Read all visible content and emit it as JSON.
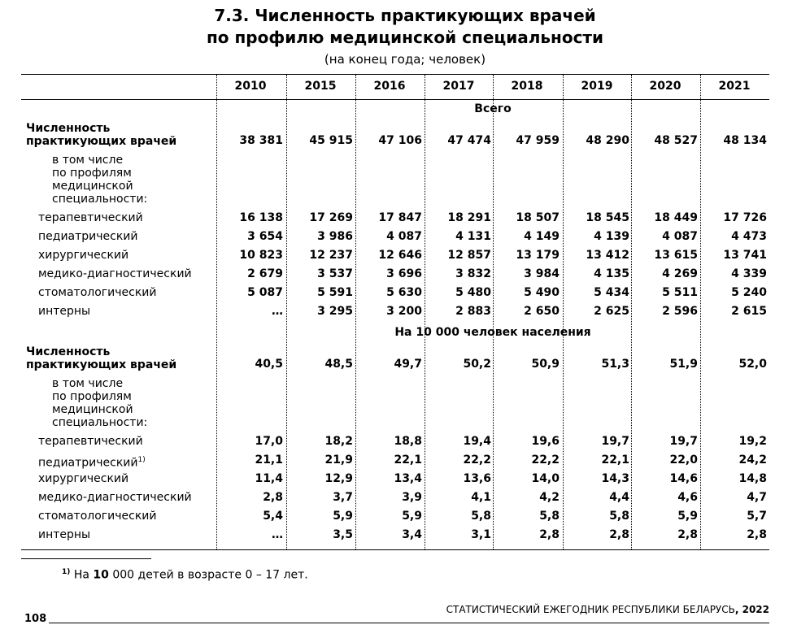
{
  "title_line1": "7.3. Численность практикующих врачей",
  "title_line2": "по профилю медицинской специальности",
  "subtitle": "(на конец года; человек)",
  "years": [
    "2010",
    "2015",
    "2016",
    "2017",
    "2018",
    "2019",
    "2020",
    "2021"
  ],
  "sections": [
    {
      "title": "Всего",
      "total_label_1": "Численность",
      "total_label_2": "практикующих врачей",
      "total_values": [
        "38 381",
        "45 915",
        "47 106",
        "47 474",
        "47 959",
        "48 290",
        "48 527",
        "48 134"
      ],
      "sub_label_lines": [
        "в том числе",
        "по профилям",
        "медицинской",
        "специальности:"
      ],
      "rows": [
        {
          "label": "терапевтический",
          "values": [
            "16 138",
            "17 269",
            "17 847",
            "18 291",
            "18 507",
            "18 545",
            "18 449",
            "17 726"
          ]
        },
        {
          "label": "педиатрический",
          "values": [
            "3 654",
            "3 986",
            "4 087",
            "4 131",
            "4 149",
            "4 139",
            "4 087",
            "4 473"
          ]
        },
        {
          "label": "хирургический",
          "values": [
            "10 823",
            "12 237",
            "12 646",
            "12 857",
            "13 179",
            "13 412",
            "13 615",
            "13 741"
          ]
        },
        {
          "label": "медико-диагностический",
          "values": [
            "2 679",
            "3 537",
            "3 696",
            "3 832",
            "3 984",
            "4 135",
            "4 269",
            "4 339"
          ]
        },
        {
          "label": "стоматологический",
          "values": [
            "5 087",
            "5 591",
            "5 630",
            "5 480",
            "5 490",
            "5 434",
            "5 511",
            "5 240"
          ]
        },
        {
          "label": "интерны",
          "values": [
            "…",
            "3 295",
            "3 200",
            "2 883",
            "2 650",
            "2 625",
            "2 596",
            "2 615"
          ]
        }
      ]
    },
    {
      "title": "На 10 000 человек населения",
      "total_label_1": "Численность",
      "total_label_2": "практикующих врачей",
      "total_values": [
        "40,5",
        "48,5",
        "49,7",
        "50,2",
        "50,9",
        "51,3",
        "51,9",
        "52,0"
      ],
      "sub_label_lines": [
        "в том числе",
        "по профилям",
        "медицинской",
        "специальности:"
      ],
      "rows": [
        {
          "label": "терапевтический",
          "values": [
            "17,0",
            "18,2",
            "18,8",
            "19,4",
            "19,6",
            "19,7",
            "19,7",
            "19,2"
          ]
        },
        {
          "label": "педиатрический",
          "sup": "1)",
          "values": [
            "21,1",
            "21,9",
            "22,1",
            "22,2",
            "22,2",
            "22,1",
            "22,0",
            "24,2"
          ]
        },
        {
          "label": "хирургический",
          "values": [
            "11,4",
            "12,9",
            "13,4",
            "13,6",
            "14,0",
            "14,3",
            "14,6",
            "14,8"
          ]
        },
        {
          "label": "медико-диагностический",
          "values": [
            "2,8",
            "3,7",
            "3,9",
            "4,1",
            "4,2",
            "4,4",
            "4,6",
            "4,7"
          ]
        },
        {
          "label": "стоматологический",
          "values": [
            "5,4",
            "5,9",
            "5,9",
            "5,8",
            "5,8",
            "5,8",
            "5,9",
            "5,7"
          ]
        },
        {
          "label": "интерны",
          "values": [
            "…",
            "3,5",
            "3,4",
            "3,1",
            "2,8",
            "2,8",
            "2,8",
            "2,8"
          ]
        }
      ]
    }
  ],
  "footnote": {
    "marker": "1)",
    "text_before": "На",
    "bold_number": "10",
    "text_after": "000 детей в возрасте 0 – 17 лет."
  },
  "footer": {
    "publication": "СТАТИСТИЧЕСКИЙ ЕЖЕГОДНИК РЕСПУБЛИКИ БЕЛАРУСЬ",
    "year": ", 2022"
  },
  "page_number": "108"
}
